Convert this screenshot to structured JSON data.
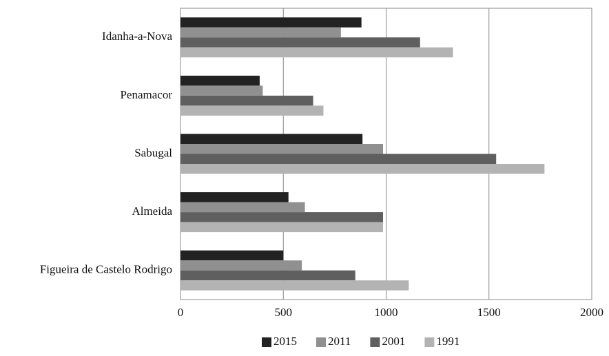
{
  "chart_data": {
    "type": "hbar",
    "categories": [
      "Idanha-a-Nova",
      "Penamacor",
      "Sabugal",
      "Almeida",
      "Figueira de Castelo Rodrigo"
    ],
    "series": [
      {
        "name": "2015",
        "color": "#222222",
        "values": [
          880,
          385,
          885,
          525,
          500
        ]
      },
      {
        "name": "2011",
        "color": "#909090",
        "values": [
          780,
          400,
          985,
          605,
          590
        ]
      },
      {
        "name": "2001",
        "color": "#5f5f5f",
        "values": [
          1165,
          645,
          1535,
          985,
          850
        ]
      },
      {
        "name": "1991",
        "color": "#b3b3b3",
        "values": [
          1325,
          695,
          1770,
          985,
          1110
        ]
      }
    ],
    "xlim": [
      0,
      2000
    ],
    "xticks": [
      0,
      500,
      1000,
      1500,
      2000
    ],
    "grid": true,
    "legend": "bottom"
  }
}
